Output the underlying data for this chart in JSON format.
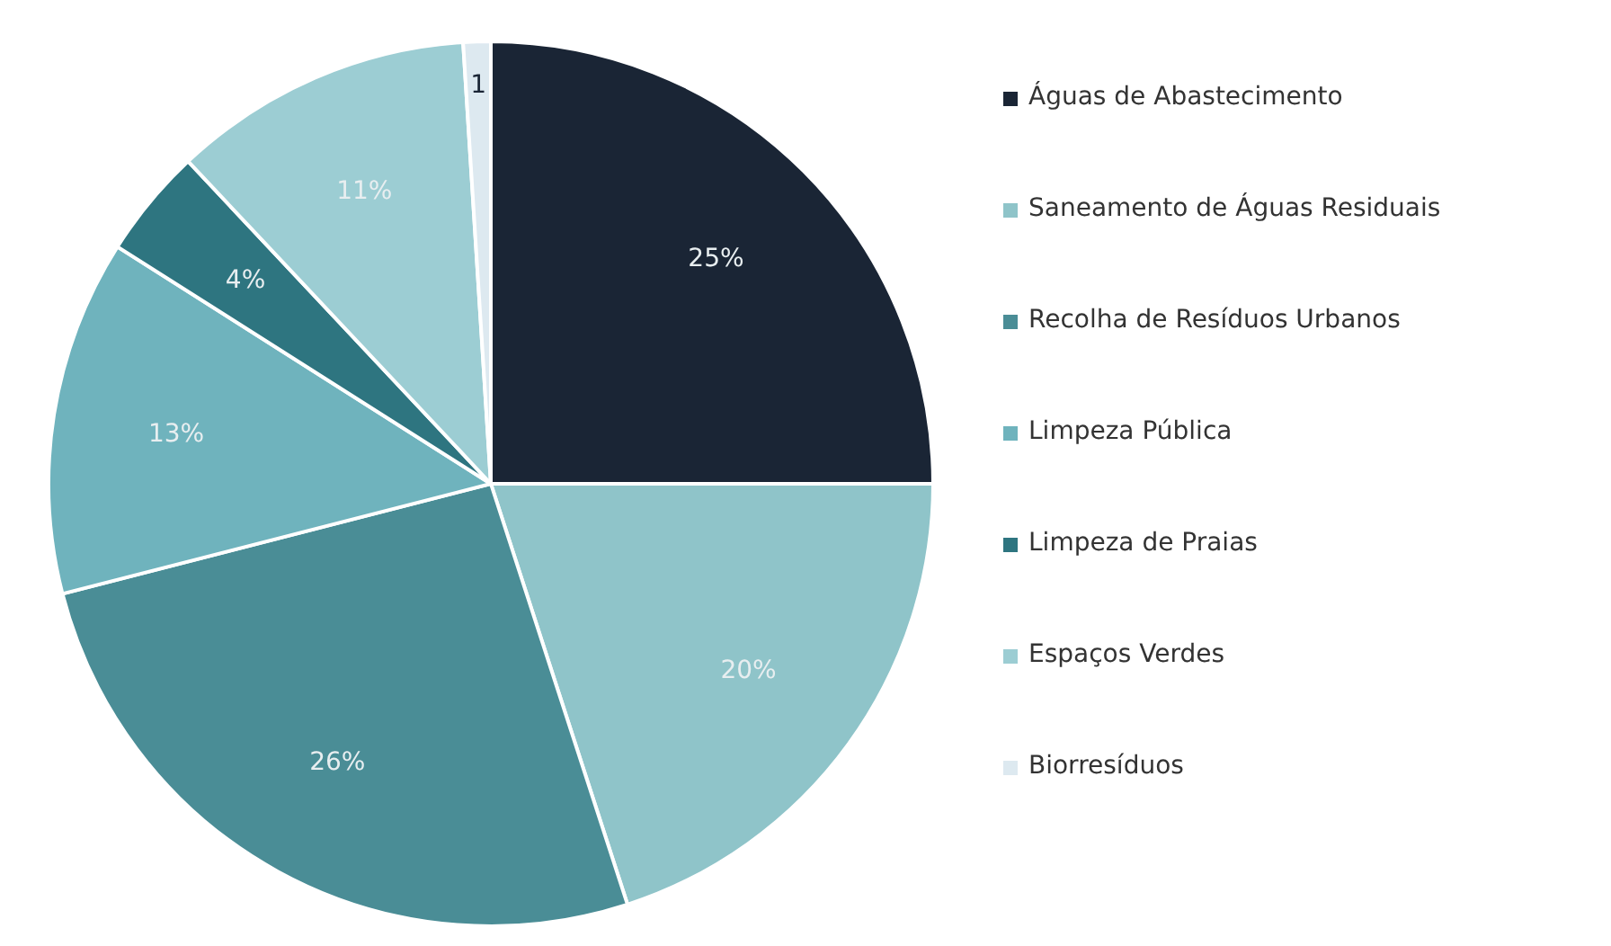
{
  "chart_data": {
    "type": "pie",
    "categories": [
      "Águas de Abastecimento",
      "Saneamento de Águas Residuais",
      "Recolha de Resíduos Urbanos",
      "Limpeza Pública",
      "Limpeza de Praias",
      "Espaços Verdes",
      "Biorresíduos"
    ],
    "values": [
      25,
      20,
      26,
      13,
      4,
      11,
      1
    ],
    "value_labels": [
      "25%",
      "20%",
      "26%",
      "13%",
      "4%",
      "11%",
      "1"
    ],
    "colors": [
      "#1a2535",
      "#8fc4c9",
      "#4a8d96",
      "#6fb3bd",
      "#2e7580",
      "#9ccdd3",
      "#dde9f0"
    ],
    "legend": "right"
  }
}
